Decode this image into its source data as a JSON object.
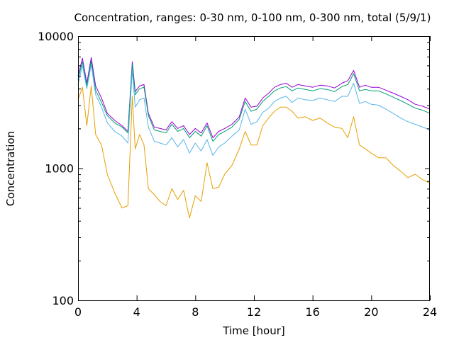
{
  "chart_data": {
    "type": "line",
    "title": "Concentration, ranges: 0-30 nm, 0-100 nm, 0-300 nm, total (5/9/1)",
    "xlabel": "Time [hour]",
    "ylabel": "Concentration",
    "xlim": [
      0,
      24
    ],
    "ylim": [
      100,
      10000
    ],
    "yscale": "log",
    "grid": false,
    "legend": "none",
    "x_ticks": [
      0,
      4,
      8,
      12,
      16,
      20,
      24
    ],
    "x_tick_labels": [
      "0",
      "4",
      "8",
      "12",
      "16",
      "20",
      "24"
    ],
    "y_ticks": [
      100,
      1000,
      10000
    ],
    "y_tick_labels": [
      "100",
      "1000",
      "10000"
    ],
    "x": [
      0,
      0.3,
      0.6,
      0.9,
      1.2,
      1.6,
      2,
      2.5,
      3,
      3.4,
      3.7,
      3.9,
      4.2,
      4.5,
      4.8,
      5.2,
      5.6,
      6,
      6.4,
      6.8,
      7.2,
      7.6,
      8,
      8.4,
      8.8,
      9.2,
      9.6,
      10,
      10.5,
      11,
      11.4,
      11.8,
      12.2,
      12.6,
      13,
      13.4,
      13.8,
      14.2,
      14.6,
      15,
      15.5,
      16,
      16.5,
      17,
      17.5,
      18,
      18.4,
      18.8,
      19.2,
      19.6,
      20,
      20.5,
      21,
      21.5,
      22,
      22.5,
      23,
      23.5,
      24
    ],
    "series": [
      {
        "color": "#9400d3",
        "values": [
          5000,
          6800,
          4400,
          6900,
          4200,
          3400,
          2600,
          2300,
          2100,
          1900,
          6400,
          3800,
          4200,
          4300,
          2600,
          2050,
          2000,
          1950,
          2250,
          2000,
          2100,
          1800,
          2000,
          1850,
          2200,
          1700,
          1900,
          2000,
          2150,
          2450,
          3400,
          2900,
          2950,
          3400,
          3700,
          4100,
          4300,
          4400,
          4100,
          4300,
          4200,
          4100,
          4250,
          4200,
          4050,
          4400,
          4600,
          5500,
          4100,
          4250,
          4100,
          4100,
          3900,
          3700,
          3500,
          3300,
          3050,
          2950,
          2800
        ]
      },
      {
        "color": "#009e73",
        "values": [
          4700,
          6400,
          4200,
          6500,
          3900,
          3150,
          2500,
          2200,
          2050,
          1850,
          6100,
          3600,
          4000,
          4100,
          2500,
          1950,
          1900,
          1850,
          2150,
          1900,
          2000,
          1700,
          1900,
          1750,
          2100,
          1600,
          1800,
          1900,
          2050,
          2350,
          3200,
          2700,
          2800,
          3200,
          3500,
          3850,
          4050,
          4150,
          3850,
          4050,
          3950,
          3850,
          4000,
          3950,
          3800,
          4150,
          4300,
          5200,
          3850,
          3950,
          3850,
          3850,
          3650,
          3450,
          3250,
          3050,
          2850,
          2750,
          2600
        ]
      },
      {
        "color": "#56b4e9",
        "values": [
          4300,
          6000,
          4000,
          6100,
          3600,
          2900,
          2200,
          1900,
          1750,
          1550,
          5500,
          2900,
          3300,
          3400,
          2050,
          1600,
          1550,
          1500,
          1700,
          1450,
          1650,
          1300,
          1550,
          1350,
          1650,
          1250,
          1450,
          1550,
          1750,
          1950,
          2800,
          2150,
          2250,
          2650,
          2850,
          3200,
          3400,
          3500,
          3150,
          3400,
          3300,
          3250,
          3400,
          3300,
          3200,
          3500,
          3500,
          4400,
          3100,
          3200,
          3050,
          3000,
          2800,
          2600,
          2400,
          2250,
          2150,
          2050,
          1950
        ]
      },
      {
        "color": "#e69f00",
        "values": [
          3300,
          4100,
          2100,
          4200,
          1800,
          1500,
          900,
          650,
          500,
          520,
          3500,
          1400,
          1800,
          1500,
          700,
          630,
          560,
          520,
          700,
          580,
          680,
          420,
          620,
          560,
          1100,
          700,
          720,
          900,
          1050,
          1400,
          1900,
          1500,
          1500,
          2100,
          2400,
          2700,
          2900,
          2900,
          2700,
          2400,
          2450,
          2300,
          2400,
          2200,
          2050,
          2000,
          1700,
          2450,
          1500,
          1400,
          1300,
          1200,
          1200,
          1050,
          950,
          850,
          900,
          820,
          770
        ]
      }
    ]
  }
}
